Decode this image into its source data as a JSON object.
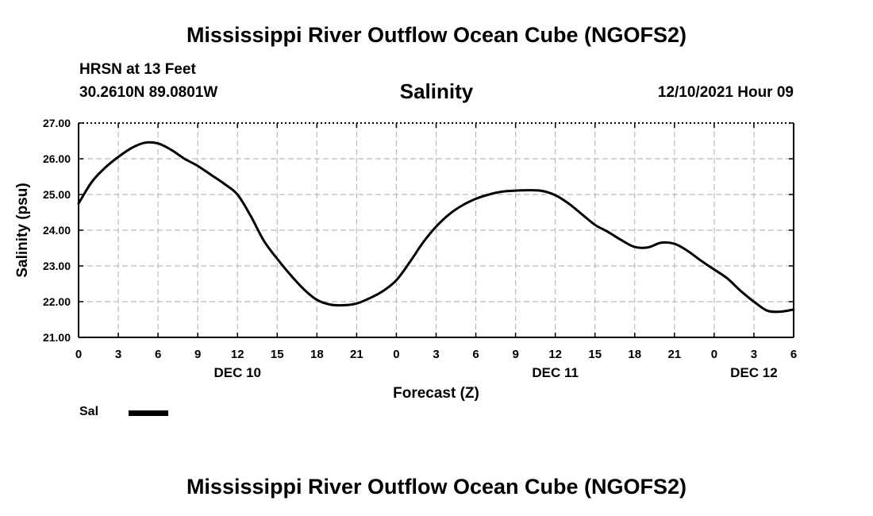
{
  "header": {
    "title": "Mississippi River Outflow Ocean Cube (NGOFS2)",
    "station": "HRSN at 13 Feet",
    "coordinates": "30.2610N  89.0801W",
    "subtitle": "Salinity",
    "datetime": "12/10/2021 Hour 09"
  },
  "footer": {
    "title": "Mississippi River Outflow Ocean Cube (NGOFS2)"
  },
  "legend": {
    "label": "Sal",
    "color": "#000000"
  },
  "chart_data": {
    "type": "line",
    "title": "Salinity",
    "xlabel": "Forecast (Z)",
    "ylabel": "Salinity (psu)",
    "xlim": [
      0,
      54
    ],
    "ylim": [
      21.0,
      27.0
    ],
    "grid": true,
    "x_tick_values": [
      0,
      3,
      6,
      9,
      12,
      15,
      18,
      21,
      24,
      27,
      30,
      33,
      36,
      39,
      42,
      45,
      48,
      51,
      54
    ],
    "x_tick_labels": [
      "0",
      "3",
      "6",
      "9",
      "12",
      "15",
      "18",
      "21",
      "0",
      "3",
      "6",
      "9",
      "12",
      "15",
      "18",
      "21",
      "0",
      "3",
      "6"
    ],
    "y_ticks": [
      21.0,
      22.0,
      23.0,
      24.0,
      25.0,
      26.0,
      27.0
    ],
    "y_tick_labels": [
      "21.00",
      "22.00",
      "23.00",
      "24.00",
      "25.00",
      "26.00",
      "27.00"
    ],
    "day_labels": [
      {
        "x": 12,
        "label": "DEC 10"
      },
      {
        "x": 36,
        "label": "DEC 11"
      },
      {
        "x": 51,
        "label": "DEC 12"
      }
    ],
    "series": [
      {
        "name": "Sal",
        "color": "#000000",
        "x": [
          0,
          1,
          2,
          3,
          4,
          5,
          6,
          7,
          8,
          9,
          10,
          11,
          12,
          13,
          14,
          15,
          16,
          17,
          18,
          19,
          20,
          21,
          22,
          23,
          24,
          25,
          26,
          27,
          28,
          29,
          30,
          31,
          32,
          33,
          34,
          35,
          36,
          37,
          38,
          39,
          40,
          41,
          42,
          43,
          44,
          45,
          46,
          47,
          48,
          49,
          50,
          51,
          52,
          53,
          54
        ],
        "values": [
          24.75,
          25.35,
          25.75,
          26.05,
          26.3,
          26.45,
          26.43,
          26.25,
          26.0,
          25.8,
          25.55,
          25.3,
          25.0,
          24.4,
          23.7,
          23.2,
          22.75,
          22.35,
          22.05,
          21.92,
          21.9,
          21.95,
          22.1,
          22.3,
          22.6,
          23.1,
          23.65,
          24.1,
          24.45,
          24.7,
          24.88,
          25.0,
          25.08,
          25.11,
          25.12,
          25.1,
          24.98,
          24.75,
          24.45,
          24.15,
          23.95,
          23.72,
          23.53,
          23.52,
          23.65,
          23.62,
          23.42,
          23.15,
          22.9,
          22.65,
          22.3,
          22.0,
          21.75,
          21.72,
          21.78
        ]
      }
    ]
  }
}
